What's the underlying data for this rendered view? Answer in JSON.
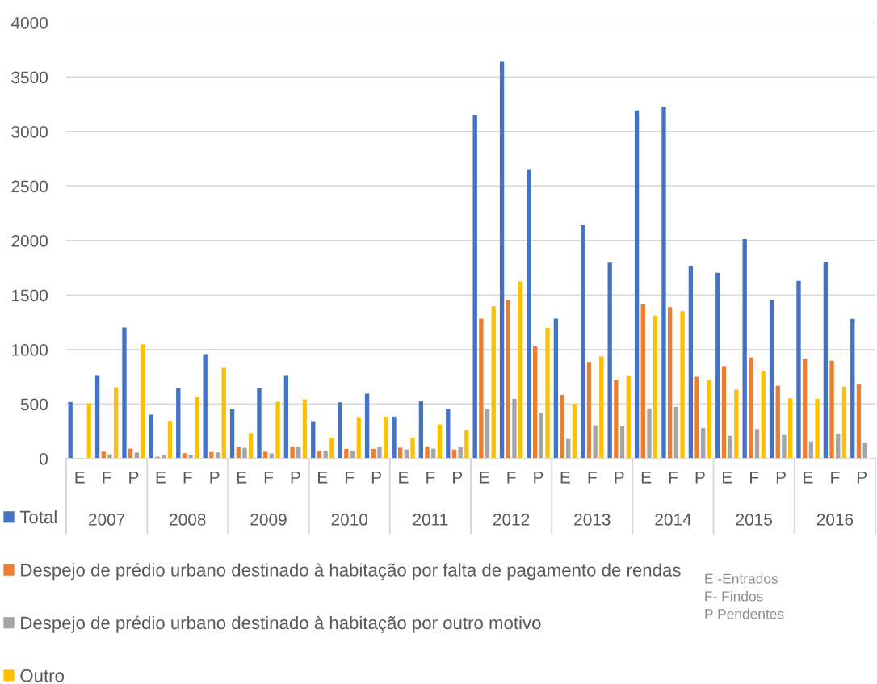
{
  "chart_data": {
    "type": "bar",
    "categories": [
      "E",
      "F",
      "P",
      "E",
      "F",
      "P",
      "E",
      "F",
      "P",
      "E",
      "F",
      "P",
      "E",
      "F",
      "P",
      "E",
      "F",
      "P",
      "E",
      "F",
      "P",
      "E",
      "F",
      "P",
      "E",
      "F",
      "P",
      "E",
      "F",
      "P"
    ],
    "series": [
      {
        "name": "Total",
        "color": "#4472c4",
        "values": [
          520,
          767,
          1203,
          403,
          646,
          960,
          453,
          646,
          767,
          344,
          517,
          597,
          386,
          525,
          455,
          3151,
          3640,
          2655,
          1285,
          2142,
          1799,
          3194,
          3229,
          1763,
          1706,
          2014,
          1453,
          1631,
          1806,
          1283
        ]
      },
      {
        "name": "Despejo de prédio urbano destinado à habitação por falta de pagamento de rendas",
        "color": "#ed7d31",
        "values": [
          null,
          64,
          92,
          17,
          50,
          62,
          109,
          64,
          109,
          72,
          89,
          89,
          101,
          109,
          84,
          1285,
          1453,
          1030,
          586,
          887,
          726,
          1415,
          1390,
          752,
          849,
          929,
          669,
          912,
          899,
          681
        ]
      },
      {
        "name": "Despejo de prédio urbano destinado à habitação por outro motivo",
        "color": "#a5a5a5",
        "values": [
          null,
          40,
          57,
          30,
          30,
          57,
          99,
          47,
          109,
          74,
          72,
          109,
          84,
          92,
          104,
          458,
          549,
          416,
          188,
          306,
          298,
          461,
          476,
          281,
          210,
          273,
          218,
          158,
          230,
          148
        ]
      },
      {
        "name": "Outro",
        "color": "#ffc000",
        "values": [
          507,
          656,
          1050,
          347,
          564,
          834,
          233,
          522,
          545,
          193,
          381,
          386,
          193,
          314,
          262,
          1398,
          1626,
          1200,
          503,
          939,
          764,
          1313,
          1353,
          721,
          634,
          802,
          554,
          549,
          661,
          null
        ]
      }
    ],
    "ylim": [
      0,
      4000
    ],
    "yticks": [
      0,
      500,
      1000,
      1500,
      2000,
      2500,
      3000,
      3500,
      4000
    ],
    "grid": "y",
    "legend": "bottom",
    "annotations": [
      "2007",
      "2008",
      "2009",
      "2010",
      "2011",
      "2012",
      "2013",
      "2014",
      "2015",
      "2016",
      "E -Entrados\nF- Findos\nP Pendentes"
    ]
  }
}
